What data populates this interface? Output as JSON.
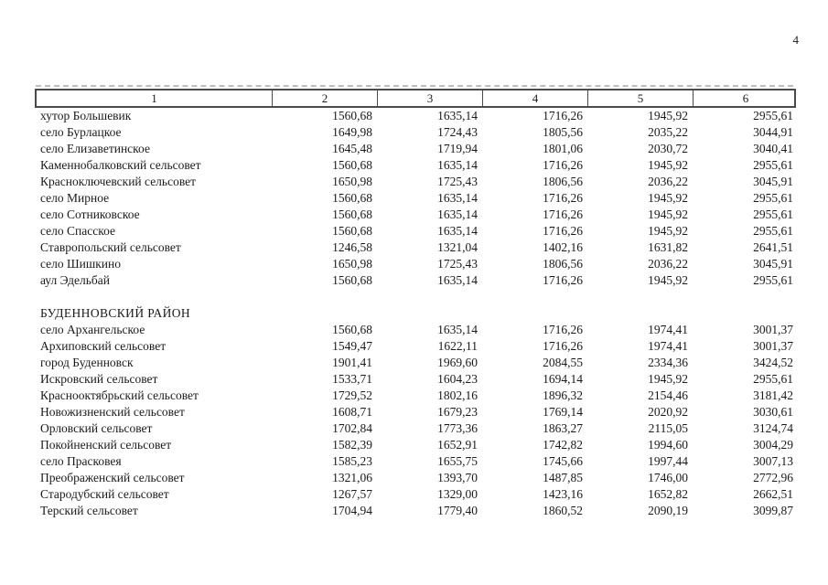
{
  "page": {
    "number": "4"
  },
  "table": {
    "header": [
      "1",
      "2",
      "3",
      "4",
      "5",
      "6"
    ],
    "sections": [
      {
        "title": "",
        "rows": [
          {
            "name": "хутор Большевик",
            "values": [
              "1560,68",
              "1635,14",
              "1716,26",
              "1945,92",
              "2955,61"
            ]
          },
          {
            "name": "село Бурлацкое",
            "values": [
              "1649,98",
              "1724,43",
              "1805,56",
              "2035,22",
              "3044,91"
            ]
          },
          {
            "name": "село Елизаветинское",
            "values": [
              "1645,48",
              "1719,94",
              "1801,06",
              "2030,72",
              "3040,41"
            ]
          },
          {
            "name": "Каменнобалковский сельсовет",
            "values": [
              "1560,68",
              "1635,14",
              "1716,26",
              "1945,92",
              "2955,61"
            ]
          },
          {
            "name": "Красноключевский сельсовет",
            "values": [
              "1650,98",
              "1725,43",
              "1806,56",
              "2036,22",
              "3045,91"
            ]
          },
          {
            "name": "село Мирное",
            "values": [
              "1560,68",
              "1635,14",
              "1716,26",
              "1945,92",
              "2955,61"
            ]
          },
          {
            "name": "село Сотниковское",
            "values": [
              "1560,68",
              "1635,14",
              "1716,26",
              "1945,92",
              "2955,61"
            ]
          },
          {
            "name": "село Спасское",
            "values": [
              "1560,68",
              "1635,14",
              "1716,26",
              "1945,92",
              "2955,61"
            ]
          },
          {
            "name": "Ставропольский сельсовет",
            "values": [
              "1246,58",
              "1321,04",
              "1402,16",
              "1631,82",
              "2641,51"
            ]
          },
          {
            "name": "село Шишкино",
            "values": [
              "1650,98",
              "1725,43",
              "1806,56",
              "2036,22",
              "3045,91"
            ]
          },
          {
            "name": "аул Эдельбай",
            "values": [
              "1560,68",
              "1635,14",
              "1716,26",
              "1945,92",
              "2955,61"
            ]
          }
        ]
      },
      {
        "title": "БУДЕННОВСКИЙ РАЙОН",
        "rows": [
          {
            "name": "село Архангельское",
            "values": [
              "1560,68",
              "1635,14",
              "1716,26",
              "1974,41",
              "3001,37"
            ]
          },
          {
            "name": "Архиповский сельсовет",
            "values": [
              "1549,47",
              "1622,11",
              "1716,26",
              "1974,41",
              "3001,37"
            ]
          },
          {
            "name": "город Буденновск",
            "values": [
              "1901,41",
              "1969,60",
              "2084,55",
              "2334,36",
              "3424,52"
            ]
          },
          {
            "name": "Искровский сельсовет",
            "values": [
              "1533,71",
              "1604,23",
              "1694,14",
              "1945,92",
              "2955,61"
            ]
          },
          {
            "name": "Краснооктябрьский сельсовет",
            "values": [
              "1729,52",
              "1802,16",
              "1896,32",
              "2154,46",
              "3181,42"
            ]
          },
          {
            "name": "Новожизненский сельсовет",
            "values": [
              "1608,71",
              "1679,23",
              "1769,14",
              "2020,92",
              "3030,61"
            ]
          },
          {
            "name": "Орловский сельсовет",
            "values": [
              "1702,84",
              "1773,36",
              "1863,27",
              "2115,05",
              "3124,74"
            ]
          },
          {
            "name": "Покойненский сельсовет",
            "values": [
              "1582,39",
              "1652,91",
              "1742,82",
              "1994,60",
              "3004,29"
            ]
          },
          {
            "name": "село Прасковея",
            "values": [
              "1585,23",
              "1655,75",
              "1745,66",
              "1997,44",
              "3007,13"
            ]
          },
          {
            "name": "Преображенский сельсовет",
            "values": [
              "1321,06",
              "1393,70",
              "1487,85",
              "1746,00",
              "2772,96"
            ]
          },
          {
            "name": "Стародубский сельсовет",
            "values": [
              "1267,57",
              "1329,00",
              "1423,16",
              "1652,82",
              "2662,51"
            ]
          },
          {
            "name": "Терский сельсовет",
            "values": [
              "1704,94",
              "1779,40",
              "1860,52",
              "2090,19",
              "3099,87"
            ]
          }
        ]
      }
    ]
  }
}
